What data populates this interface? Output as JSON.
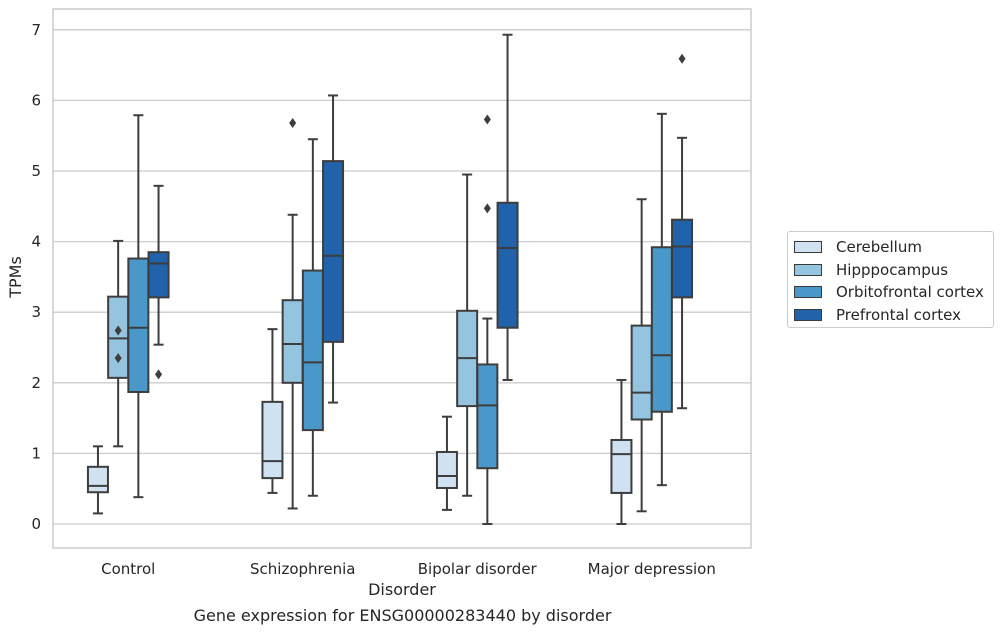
{
  "caption": "Gene expression for ENSG00000283440 by disorder",
  "chart_data": {
    "type": "boxplot",
    "xlabel": "Disorder",
    "ylabel": "TPMs",
    "ylim": [
      -0.33,
      7.3
    ],
    "yticks": [
      0,
      1,
      2,
      3,
      4,
      5,
      6,
      7
    ],
    "grid": "horizontal",
    "legend_position": "right",
    "categories": [
      "Control",
      "Schizophrenia",
      "Bipolar disorder",
      "Major depression"
    ],
    "series": [
      {
        "name": "Cerebellum",
        "color": "#d0e1f2",
        "boxes": [
          {
            "whislo": 0.15,
            "q1": 0.45,
            "med": 0.54,
            "q3": 0.81,
            "whishi": 1.1,
            "fliers": []
          },
          {
            "whislo": 0.44,
            "q1": 0.65,
            "med": 0.89,
            "q3": 1.73,
            "whishi": 2.76,
            "fliers": []
          },
          {
            "whislo": 0.2,
            "q1": 0.51,
            "med": 0.68,
            "q3": 1.02,
            "whishi": 1.52,
            "fliers": []
          },
          {
            "whislo": 0.0,
            "q1": 0.44,
            "med": 0.99,
            "q3": 1.19,
            "whishi": 2.04,
            "fliers": []
          }
        ]
      },
      {
        "name": "Hipppocampus",
        "color": "#94c4df",
        "boxes": [
          {
            "whislo": 1.1,
            "q1": 2.07,
            "med": 2.63,
            "q3": 3.22,
            "whishi": 4.01,
            "fliers": [
              2.74,
              2.35
            ]
          },
          {
            "whislo": 0.22,
            "q1": 2.0,
            "med": 2.55,
            "q3": 3.17,
            "whishi": 4.38,
            "fliers": [
              5.68
            ]
          },
          {
            "whislo": 0.4,
            "q1": 1.67,
            "med": 2.35,
            "q3": 3.02,
            "whishi": 4.95,
            "fliers": []
          },
          {
            "whislo": 0.18,
            "q1": 1.48,
            "med": 1.86,
            "q3": 2.81,
            "whishi": 4.6,
            "fliers": []
          }
        ]
      },
      {
        "name": "Orbitofrontal cortex",
        "color": "#4a98c9",
        "boxes": [
          {
            "whislo": 0.38,
            "q1": 1.87,
            "med": 2.78,
            "q3": 3.76,
            "whishi": 5.79,
            "fliers": []
          },
          {
            "whislo": 0.4,
            "q1": 1.33,
            "med": 2.29,
            "q3": 3.59,
            "whishi": 5.45,
            "fliers": []
          },
          {
            "whislo": 0.0,
            "q1": 0.79,
            "med": 1.68,
            "q3": 2.26,
            "whishi": 2.91,
            "fliers": [
              5.73,
              4.47
            ]
          },
          {
            "whislo": 0.55,
            "q1": 1.59,
            "med": 2.39,
            "q3": 3.92,
            "whishi": 5.81,
            "fliers": []
          }
        ]
      },
      {
        "name": "Prefrontal cortex",
        "color": "#2163aa",
        "boxes": [
          {
            "whislo": 2.54,
            "q1": 3.21,
            "med": 3.69,
            "q3": 3.85,
            "whishi": 4.79,
            "fliers": [
              2.12
            ]
          },
          {
            "whislo": 1.72,
            "q1": 2.58,
            "med": 3.8,
            "q3": 5.14,
            "whishi": 6.07,
            "fliers": []
          },
          {
            "whislo": 2.04,
            "q1": 2.78,
            "med": 3.91,
            "q3": 4.55,
            "whishi": 6.93,
            "fliers": []
          },
          {
            "whislo": 1.64,
            "q1": 3.21,
            "med": 3.93,
            "q3": 4.31,
            "whishi": 5.47,
            "fliers": [
              6.59
            ]
          }
        ]
      }
    ]
  }
}
